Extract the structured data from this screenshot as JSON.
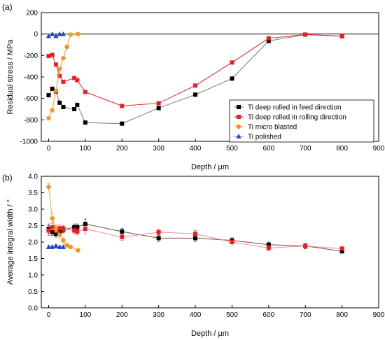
{
  "chart_data": [
    {
      "type": "line",
      "panel_label": "(a)",
      "title": "",
      "xlabel": "Depth / µm",
      "ylabel": "Residual stress / MPa",
      "xlim": [
        -20,
        900
      ],
      "ylim": [
        -1000,
        200
      ],
      "xticks": [
        0,
        100,
        200,
        300,
        400,
        500,
        600,
        700,
        800,
        900
      ],
      "yticks": [
        -1000,
        -800,
        -600,
        -400,
        -200,
        0,
        200
      ],
      "zero_line": true,
      "grid": false,
      "legend_position": "lower-right",
      "series": [
        {
          "name": "Ti deep rolled in feed direction",
          "color": "#000000",
          "line_color": "#7a7a7a",
          "marker": "square",
          "points": [
            [
              0,
              -570
            ],
            [
              10,
              -510
            ],
            [
              20,
              -535
            ],
            [
              30,
              -640
            ],
            [
              40,
              -680
            ],
            [
              70,
              -700
            ],
            [
              78,
              -660
            ],
            [
              100,
              -825
            ],
            [
              200,
              -835
            ],
            [
              300,
              -690
            ],
            [
              400,
              -565
            ],
            [
              500,
              -415
            ],
            [
              600,
              -65
            ],
            [
              700,
              -5
            ],
            [
              800,
              -20
            ]
          ]
        },
        {
          "name": "Ti deep rolled in rolling direction",
          "color": "#ee1c24",
          "line_color": "#ee1c24",
          "marker": "square",
          "points": [
            [
              0,
              -205
            ],
            [
              10,
              -195
            ],
            [
              20,
              -285
            ],
            [
              30,
              -390
            ],
            [
              40,
              -445
            ],
            [
              70,
              -410
            ],
            [
              78,
              -430
            ],
            [
              100,
              -540
            ],
            [
              200,
              -670
            ],
            [
              300,
              -645
            ],
            [
              400,
              -480
            ],
            [
              500,
              -265
            ],
            [
              600,
              -40
            ],
            [
              700,
              -5
            ],
            [
              800,
              -20
            ]
          ]
        },
        {
          "name": "Ti micro blasted",
          "color": "#f7941d",
          "line_color": "#f7941d",
          "marker": "circle",
          "points": [
            [
              0,
              -785
            ],
            [
              10,
              -710
            ],
            [
              20,
              -530
            ],
            [
              30,
              -325
            ],
            [
              40,
              -225
            ],
            [
              50,
              -120
            ],
            [
              60,
              -5
            ],
            [
              80,
              0
            ]
          ]
        },
        {
          "name": "Ti polished",
          "color": "#1f3fd4",
          "line_color": "#6e86ff",
          "marker": "triangle",
          "points": [
            [
              0,
              -20
            ],
            [
              10,
              0
            ],
            [
              20,
              -20
            ],
            [
              30,
              0
            ],
            [
              40,
              0
            ]
          ]
        }
      ]
    },
    {
      "type": "line",
      "panel_label": "(b)",
      "title": "",
      "xlabel": "Depth / µm",
      "ylabel": "Average integral width / °",
      "xlim": [
        -20,
        900
      ],
      "ylim": [
        0,
        4
      ],
      "xticks": [
        0,
        100,
        200,
        300,
        400,
        500,
        600,
        700,
        800,
        900
      ],
      "yticks": [
        0.0,
        0.5,
        1.0,
        1.5,
        2.0,
        2.5,
        3.0,
        3.5,
        4.0
      ],
      "grid": false,
      "error_bars": true,
      "series": [
        {
          "name": "Ti deep rolled in feed direction",
          "color": "#000000",
          "line_color": "#7a4b2a",
          "marker": "square",
          "points": [
            [
              0,
              2.4
            ],
            [
              10,
              2.3
            ],
            [
              20,
              2.25
            ],
            [
              30,
              2.3
            ],
            [
              40,
              2.38
            ],
            [
              70,
              2.45
            ],
            [
              78,
              2.45
            ],
            [
              100,
              2.55
            ],
            [
              200,
              2.32
            ],
            [
              300,
              2.12
            ],
            [
              400,
              2.12
            ],
            [
              500,
              2.05
            ],
            [
              600,
              1.92
            ],
            [
              700,
              1.88
            ],
            [
              800,
              1.72
            ]
          ],
          "errors": [
            0.15,
            0.1,
            0.1,
            0.1,
            0.1,
            0.1,
            0.1,
            0.15,
            0.1,
            0.1,
            0.1,
            0.08,
            0.08,
            0.08,
            0.06
          ]
        },
        {
          "name": "Ti deep rolled in rolling direction",
          "color": "#ee1c24",
          "line_color": "#f58aa8",
          "marker": "square",
          "points": [
            [
              0,
              2.35
            ],
            [
              10,
              2.45
            ],
            [
              20,
              2.4
            ],
            [
              30,
              2.42
            ],
            [
              40,
              2.4
            ],
            [
              70,
              2.35
            ],
            [
              78,
              2.32
            ],
            [
              100,
              2.4
            ],
            [
              200,
              2.15
            ],
            [
              300,
              2.3
            ],
            [
              400,
              2.25
            ],
            [
              500,
              2.0
            ],
            [
              600,
              1.82
            ],
            [
              700,
              1.88
            ],
            [
              800,
              1.8
            ]
          ],
          "errors": [
            0.15,
            0.15,
            0.1,
            0.1,
            0.1,
            0.1,
            0.1,
            0.15,
            0.1,
            0.1,
            0.1,
            0.1,
            0.08,
            0.08,
            0.06
          ]
        },
        {
          "name": "Ti micro blasted",
          "color": "#f7941d",
          "line_color": "#c9b45a",
          "marker": "circle",
          "points": [
            [
              0,
              3.68
            ],
            [
              10,
              2.72
            ],
            [
              20,
              2.4
            ],
            [
              30,
              2.22
            ],
            [
              40,
              2.05
            ],
            [
              50,
              1.9
            ],
            [
              60,
              1.85
            ],
            [
              80,
              1.75
            ]
          ],
          "errors": [
            0.1,
            0.15,
            0.12,
            0.1,
            0.08,
            0.06,
            0.05,
            0.05
          ]
        },
        {
          "name": "Ti polished",
          "color": "#1f3fd4",
          "line_color": "#6e86ff",
          "marker": "triangle",
          "points": [
            [
              0,
              1.85
            ],
            [
              10,
              1.85
            ],
            [
              20,
              1.88
            ],
            [
              30,
              1.85
            ],
            [
              40,
              1.85
            ]
          ],
          "errors": [
            0.04,
            0.04,
            0.04,
            0.04,
            0.04
          ]
        }
      ]
    }
  ]
}
